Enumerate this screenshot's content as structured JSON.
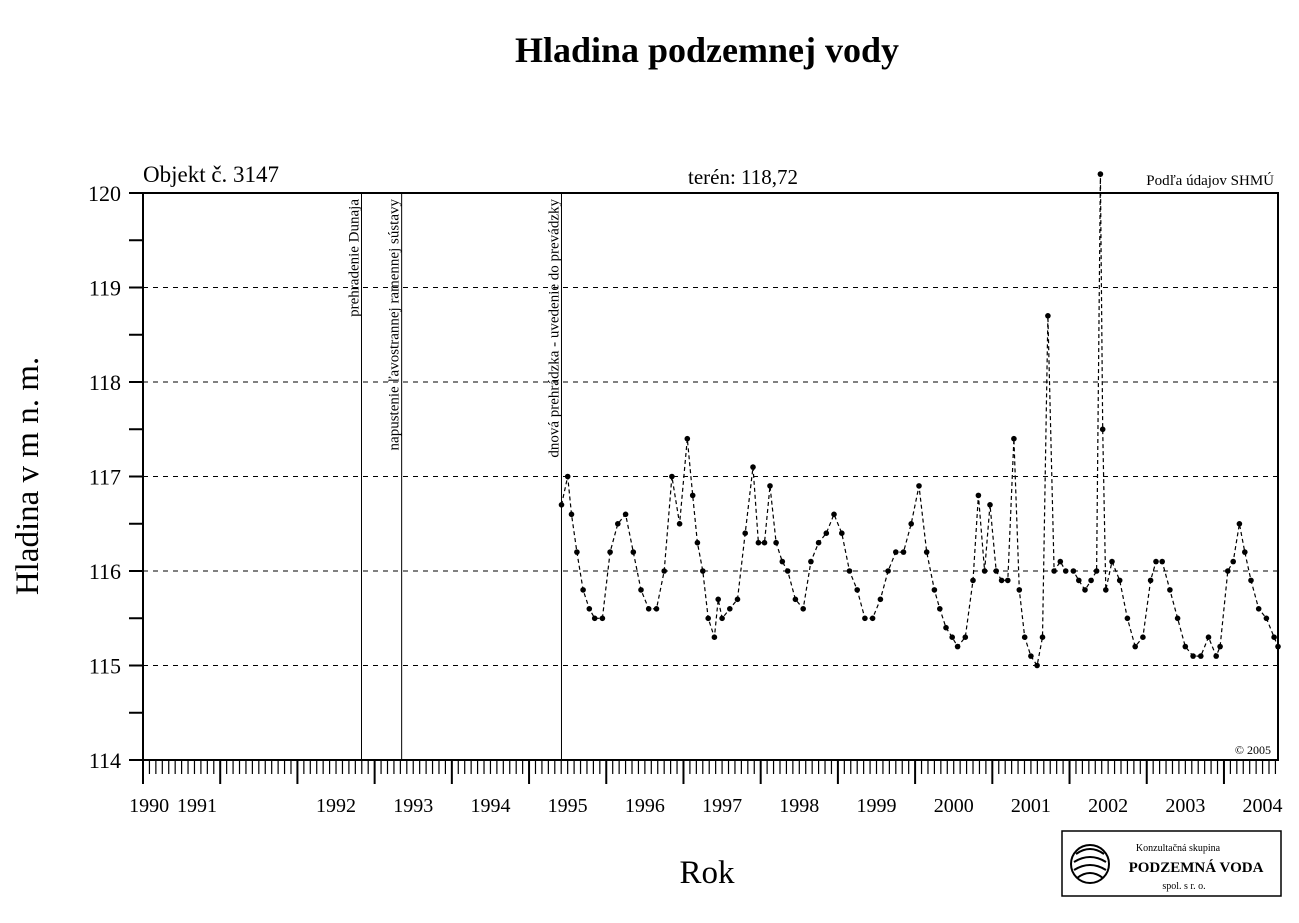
{
  "chart_data": {
    "type": "scatter",
    "title": "Hladina podzemnej vody",
    "object_label": "Objekt č. 3147",
    "terrain_label": "terén: 118,72",
    "source_note": "Podľa údajov SHMÚ",
    "copyright": "© 2005",
    "xlabel": "Rok",
    "ylabel": "Hladina v m n. m.",
    "ylim": [
      114,
      120
    ],
    "xlim": [
      1990.0,
      2004.7
    ],
    "y_ticks": [
      "114",
      "115",
      "116",
      "117",
      "118",
      "119",
      "120"
    ],
    "x_year_labels": [
      "1990",
      "1991",
      "1992",
      "1993",
      "1994",
      "1995",
      "1996",
      "1997",
      "1998",
      "1999",
      "2000",
      "2001",
      "2002",
      "2003",
      "2004"
    ],
    "grid": "horizontal dashed",
    "events": [
      {
        "x": 1992.83,
        "label": "prehradenie Dunaja"
      },
      {
        "x": 1993.35,
        "label": "napustenie ľavostrannej ramennej sústavy"
      },
      {
        "x": 1995.42,
        "label": "dnová prehrádzka - uvedenie do prevádzky"
      }
    ],
    "series": [
      {
        "x": [
          1995.42,
          1995.5,
          1995.55,
          1995.62,
          1995.7,
          1995.78,
          1995.85,
          1995.95,
          1996.05,
          1996.15,
          1996.25,
          1996.35,
          1996.45,
          1996.55,
          1996.65,
          1996.75,
          1996.85,
          1996.95,
          1997.05,
          1997.12,
          1997.18,
          1997.25,
          1997.32,
          1997.4,
          1997.45,
          1997.5,
          1997.6,
          1997.7,
          1997.8,
          1997.9,
          1997.97,
          1998.05,
          1998.12,
          1998.2,
          1998.28,
          1998.35,
          1998.45,
          1998.55,
          1998.65,
          1998.75,
          1998.85,
          1998.95,
          1999.05,
          1999.15,
          1999.25,
          1999.35,
          1999.45,
          1999.55,
          1999.65,
          1999.75,
          1999.85,
          1999.95,
          2000.05,
          2000.15,
          2000.25,
          2000.32,
          2000.4,
          2000.48,
          2000.55,
          2000.65,
          2000.75,
          2000.82,
          2000.9,
          2000.97,
          2001.05,
          2001.12,
          2001.2,
          2001.28,
          2001.35,
          2001.42,
          2001.5,
          2001.58,
          2001.65,
          2001.72,
          2001.8,
          2001.88,
          2001.95,
          2002.05,
          2002.12,
          2002.2,
          2002.28,
          2002.35,
          2002.4,
          2002.43,
          2002.47,
          2002.55,
          2002.65,
          2002.75,
          2002.85,
          2002.95,
          2003.05,
          2003.12,
          2003.2,
          2003.3,
          2003.4,
          2003.5,
          2003.6,
          2003.7,
          2003.8,
          2003.9,
          2003.95,
          2004.05,
          2004.12,
          2004.2,
          2004.27,
          2004.35,
          2004.45,
          2004.55,
          2004.65,
          2004.7
        ],
        "y": [
          116.7,
          117.0,
          116.6,
          116.2,
          115.8,
          115.6,
          115.5,
          115.5,
          116.2,
          116.5,
          116.6,
          116.2,
          115.8,
          115.6,
          115.6,
          116.0,
          117.0,
          116.5,
          117.4,
          116.8,
          116.3,
          116.0,
          115.5,
          115.3,
          115.7,
          115.5,
          115.6,
          115.7,
          116.4,
          117.1,
          116.3,
          116.3,
          116.9,
          116.3,
          116.1,
          116.0,
          115.7,
          115.6,
          116.1,
          116.3,
          116.4,
          116.6,
          116.4,
          116.0,
          115.8,
          115.5,
          115.5,
          115.7,
          116.0,
          116.2,
          116.2,
          116.5,
          116.9,
          116.2,
          115.8,
          115.6,
          115.4,
          115.3,
          115.2,
          115.3,
          115.9,
          116.8,
          116.0,
          116.7,
          116.0,
          115.9,
          115.9,
          117.4,
          115.8,
          115.3,
          115.1,
          115.0,
          115.3,
          118.7,
          116.0,
          116.1,
          116.0,
          116.0,
          115.9,
          115.8,
          115.9,
          116.0,
          120.2,
          117.5,
          115.8,
          116.1,
          115.9,
          115.5,
          115.2,
          115.3,
          115.9,
          116.1,
          116.1,
          115.8,
          115.5,
          115.2,
          115.1,
          115.1,
          115.3,
          115.1,
          115.2,
          116.0,
          116.1,
          116.5,
          116.2,
          115.9,
          115.6,
          115.5,
          115.3,
          115.2
        ]
      }
    ]
  },
  "logo": {
    "line1": "Konzultačná skupina",
    "line2": "PODZEMNÁ VODA",
    "line3": "spol. s r. o."
  }
}
